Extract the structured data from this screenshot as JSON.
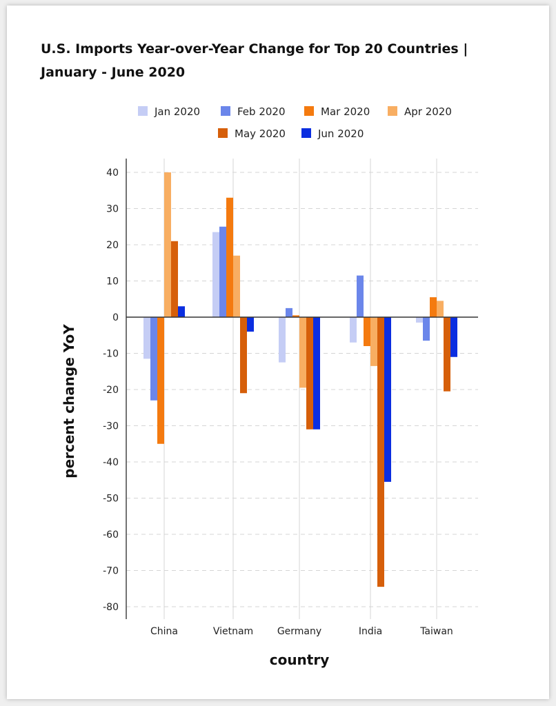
{
  "chart_data": {
    "type": "bar",
    "title": "U.S. Imports Year-over-Year Change for Top 20 Countries | January - June 2020",
    "xlabel": "country",
    "ylabel": "percent change YoY",
    "categories": [
      "China",
      "Vietnam",
      "Germany",
      "India",
      "Taiwan"
    ],
    "series": [
      {
        "name": "Jan 2020",
        "color": "#c5cdf5",
        "values": [
          -11.5,
          23.5,
          -12.5,
          -7,
          -1.5
        ]
      },
      {
        "name": "Feb 2020",
        "color": "#6b86ea",
        "values": [
          -23,
          25,
          2.5,
          11.5,
          -6.5
        ]
      },
      {
        "name": "Mar 2020",
        "color": "#f47a0f",
        "values": [
          -35,
          33,
          0.5,
          -8,
          5.5
        ]
      },
      {
        "name": "Apr 2020",
        "color": "#f8ae62",
        "values": [
          40,
          17,
          -19.5,
          -13.5,
          4.5
        ]
      },
      {
        "name": "May 2020",
        "color": "#d65f0a",
        "values": [
          21,
          -21,
          -31,
          -74.5,
          -20.5
        ]
      },
      {
        "name": "Jun 2020",
        "color": "#0b2ee0",
        "values": [
          3,
          -4,
          -31,
          -45.5,
          -11
        ]
      }
    ],
    "ylim": [
      -80,
      40
    ],
    "yticks": [
      40,
      30,
      20,
      10,
      0,
      -10,
      -20,
      -30,
      -40,
      -50,
      -60,
      -70,
      -80
    ],
    "grid": true,
    "legend": "top-center"
  }
}
